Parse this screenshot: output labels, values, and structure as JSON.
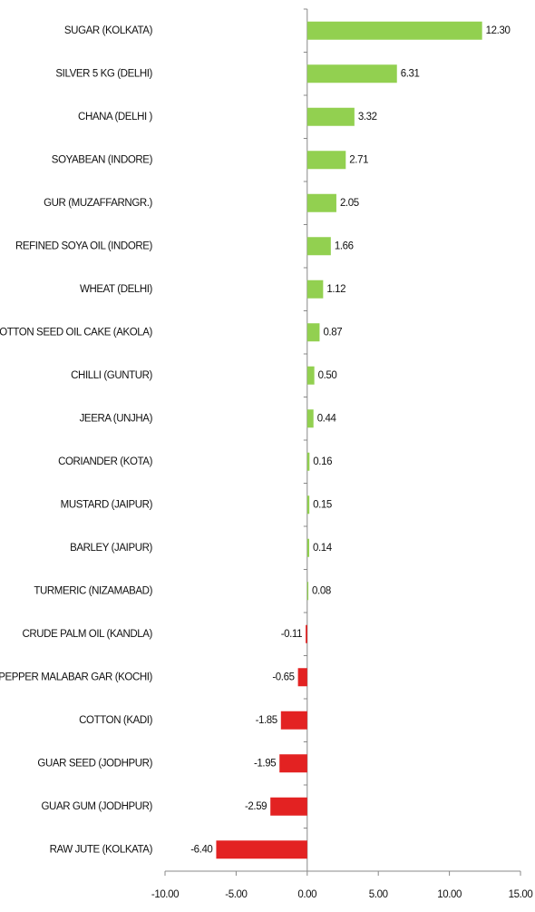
{
  "chart_data": {
    "type": "hbar",
    "categories": [
      "SUGAR (KOLKATA)",
      "SILVER 5 KG (DELHI)",
      "CHANA (DELHI )",
      "SOYABEAN (INDORE)",
      "GUR (MUZAFFARNGR.)",
      "REFINED SOYA OIL (INDORE)",
      "WHEAT (DELHI)",
      "COTTON SEED OIL CAKE (AKOLA)",
      "CHILLI (GUNTUR)",
      "JEERA (UNJHA)",
      "CORIANDER (KOTA)",
      "MUSTARD (JAIPUR)",
      "BARLEY (JAIPUR)",
      "TURMERIC (NIZAMABAD)",
      "CRUDE PALM OIL (KANDLA)",
      "PEPPER MALABAR GAR (KOCHI)",
      "COTTON (KADI)",
      "GUAR SEED (JODHPUR)",
      "GUAR GUM (JODHPUR)",
      "RAW JUTE (KOLKATA)"
    ],
    "values": [
      12.3,
      6.31,
      3.32,
      2.71,
      2.05,
      1.66,
      1.12,
      0.87,
      0.5,
      0.44,
      0.16,
      0.15,
      0.14,
      0.08,
      -0.11,
      -0.65,
      -1.85,
      -1.95,
      -2.59,
      -6.4
    ],
    "value_labels": [
      "12.30",
      "6.31",
      "3.32",
      "2.71",
      "2.05",
      "1.66",
      "1.12",
      "0.87",
      "0.50",
      "0.44",
      "0.16",
      "0.15",
      "0.14",
      "0.08",
      "-0.11",
      "-0.65",
      "-1.85",
      "-1.95",
      "-2.59",
      "-6.40"
    ],
    "positive_color": "#92d050",
    "negative_color": "#e32222",
    "xlim": [
      -10,
      15
    ],
    "xticks": [
      {
        "value": -10,
        "label": "-10.00"
      },
      {
        "value": -5,
        "label": "-5.00"
      },
      {
        "value": 0,
        "label": "0.00"
      },
      {
        "value": 5,
        "label": "5.00"
      },
      {
        "value": 10,
        "label": "10.00"
      },
      {
        "value": 15,
        "label": "15.00"
      }
    ]
  }
}
